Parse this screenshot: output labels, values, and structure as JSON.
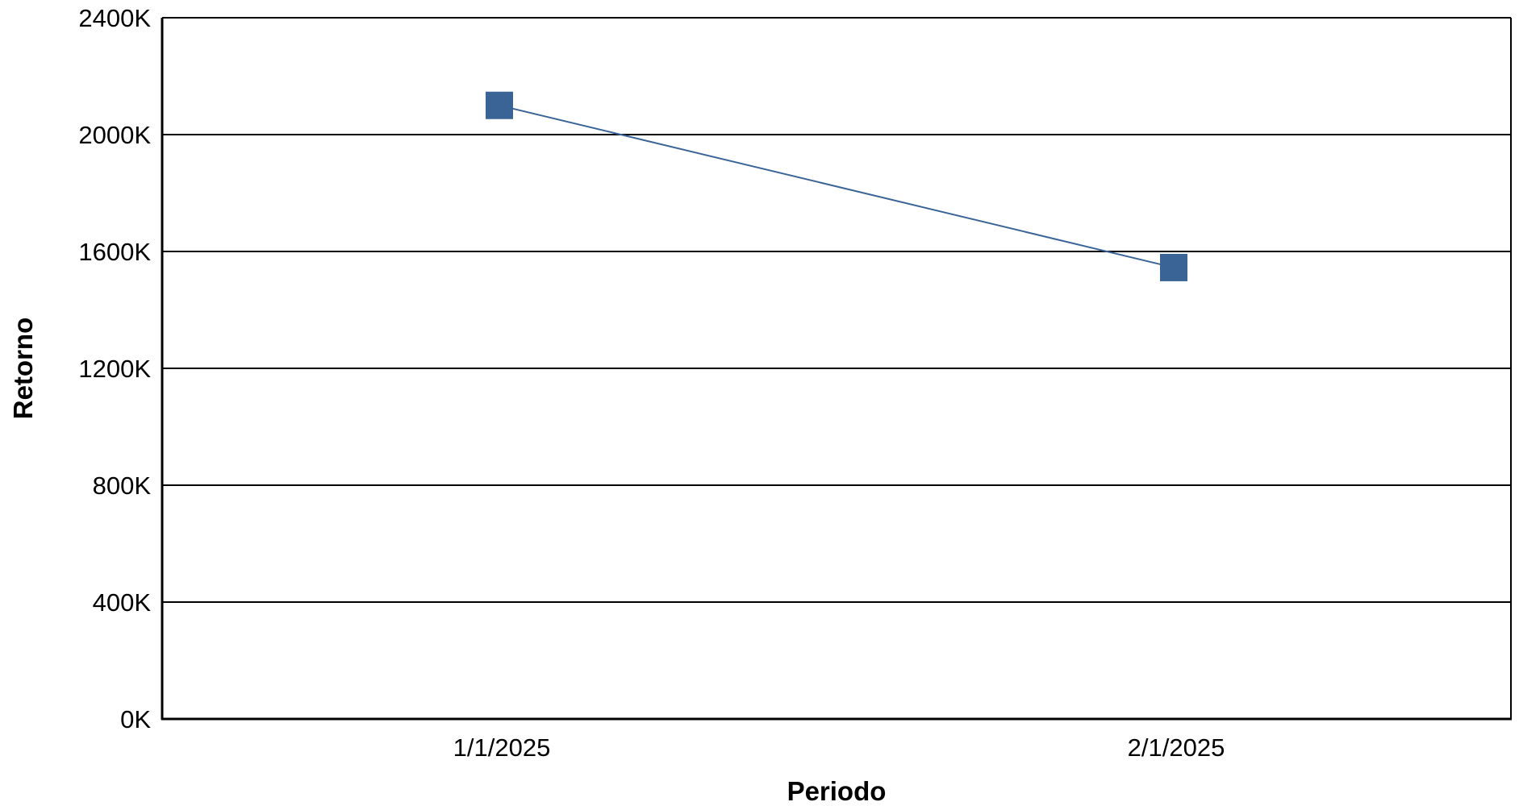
{
  "chart_data": {
    "type": "line",
    "title": "",
    "xlabel": "Periodo",
    "ylabel": "Retorno",
    "categories": [
      "1/1/2025",
      "2/1/2025"
    ],
    "series": [
      {
        "values": [
          2100000,
          1545000
        ],
        "color": "#3a6496",
        "marker": "square"
      }
    ],
    "ylim": [
      0,
      2400000
    ],
    "yticks": [
      {
        "value": 0,
        "label": "0K"
      },
      {
        "value": 400000,
        "label": "400K"
      },
      {
        "value": 800000,
        "label": "800K"
      },
      {
        "value": 1200000,
        "label": "1200K"
      },
      {
        "value": 1600000,
        "label": "1600K"
      },
      {
        "value": 2000000,
        "label": "2000K"
      },
      {
        "value": 2400000,
        "label": "2400K"
      }
    ],
    "grid": true,
    "legend": "none"
  }
}
